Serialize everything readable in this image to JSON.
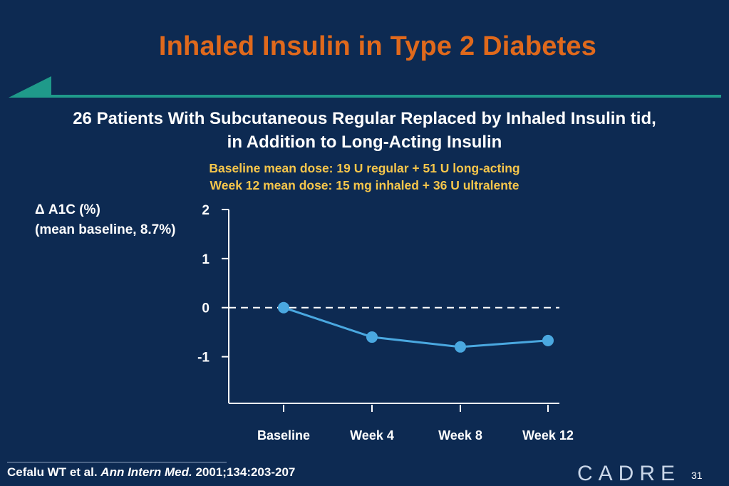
{
  "slide": {
    "title": "Inhaled Insulin in Type 2 Diabetes",
    "subtitle_line1": "26 Patients With Subcutaneous Regular Replaced by Inhaled Insulin tid,",
    "subtitle_line2": "in Addition to Long-Acting Insulin",
    "dose_line1": "Baseline mean dose: 19 U regular + 51 U long-acting",
    "dose_line2": "Week 12 mean dose: 15 mg inhaled + 36 U ultralente",
    "ylabel_line1": "Δ A1C (%)",
    "ylabel_line2": "(mean baseline, 8.7%)",
    "citation_authors": "Cefalu WT et al. ",
    "citation_journal": "Ann Intern Med.",
    "citation_rest": " 2001;134:203-207",
    "logo_text": "CADRE",
    "page_number": "31",
    "colors": {
      "background": "#0d2a52",
      "title": "#e0691c",
      "accent_teal": "#1f9a8a",
      "dose_text": "#f6c64b",
      "series": "#4aa8e0"
    }
  },
  "chart_data": {
    "type": "line",
    "categories": [
      "Baseline",
      "Week 4",
      "Week 8",
      "Week 12"
    ],
    "series": [
      {
        "values": [
          0.0,
          -0.6,
          -0.8,
          -0.67
        ]
      }
    ],
    "yticks": [
      "2",
      "1",
      "0",
      "-1"
    ],
    "ylim": [
      -1.95,
      2.0
    ],
    "reference_line": 0,
    "grid": false
  }
}
